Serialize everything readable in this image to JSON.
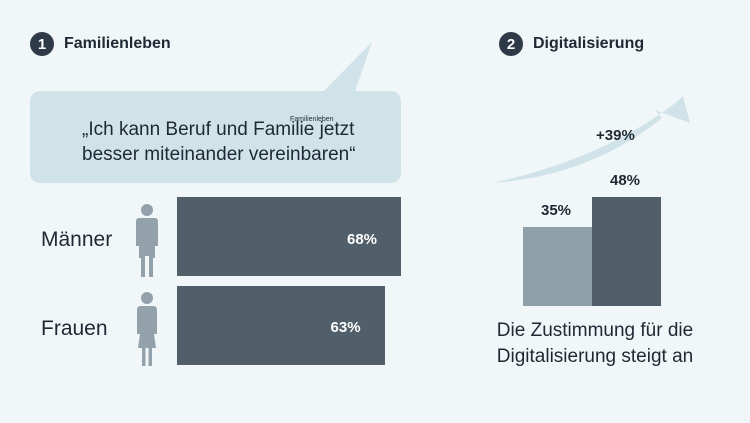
{
  "section1": {
    "number": "1",
    "title": "Familienleben"
  },
  "section2": {
    "number": "2",
    "title": "Digitalisierung"
  },
  "quote": "„Ich kann Beruf und Familie jetzt\nbesser miteinander vereinbaren“",
  "quote_overlay": "Familienleben",
  "growth_label": "+39%",
  "caption": "Die Zustimmung für die\nDigitalisierung steigt an",
  "icons": [
    "male-silhouette-icon",
    "female-silhouette-icon",
    "rising-arrow-icon"
  ],
  "colors": {
    "dark_bar": "#505f6a",
    "light_bar": "#8fa0a8",
    "bubble": "#cfe3e9",
    "background": "#f1f6f8"
  },
  "chart_data": [
    {
      "type": "bar",
      "orientation": "horizontal",
      "categories": [
        "Männer",
        "Frauen"
      ],
      "values": [
        68,
        63
      ],
      "value_labels": [
        "68%",
        "63%"
      ],
      "unit": "%"
    },
    {
      "type": "bar",
      "categories": [
        "",
        ""
      ],
      "values": [
        35,
        48
      ],
      "value_labels": [
        "35%",
        "48%"
      ],
      "unit": "%"
    }
  ]
}
